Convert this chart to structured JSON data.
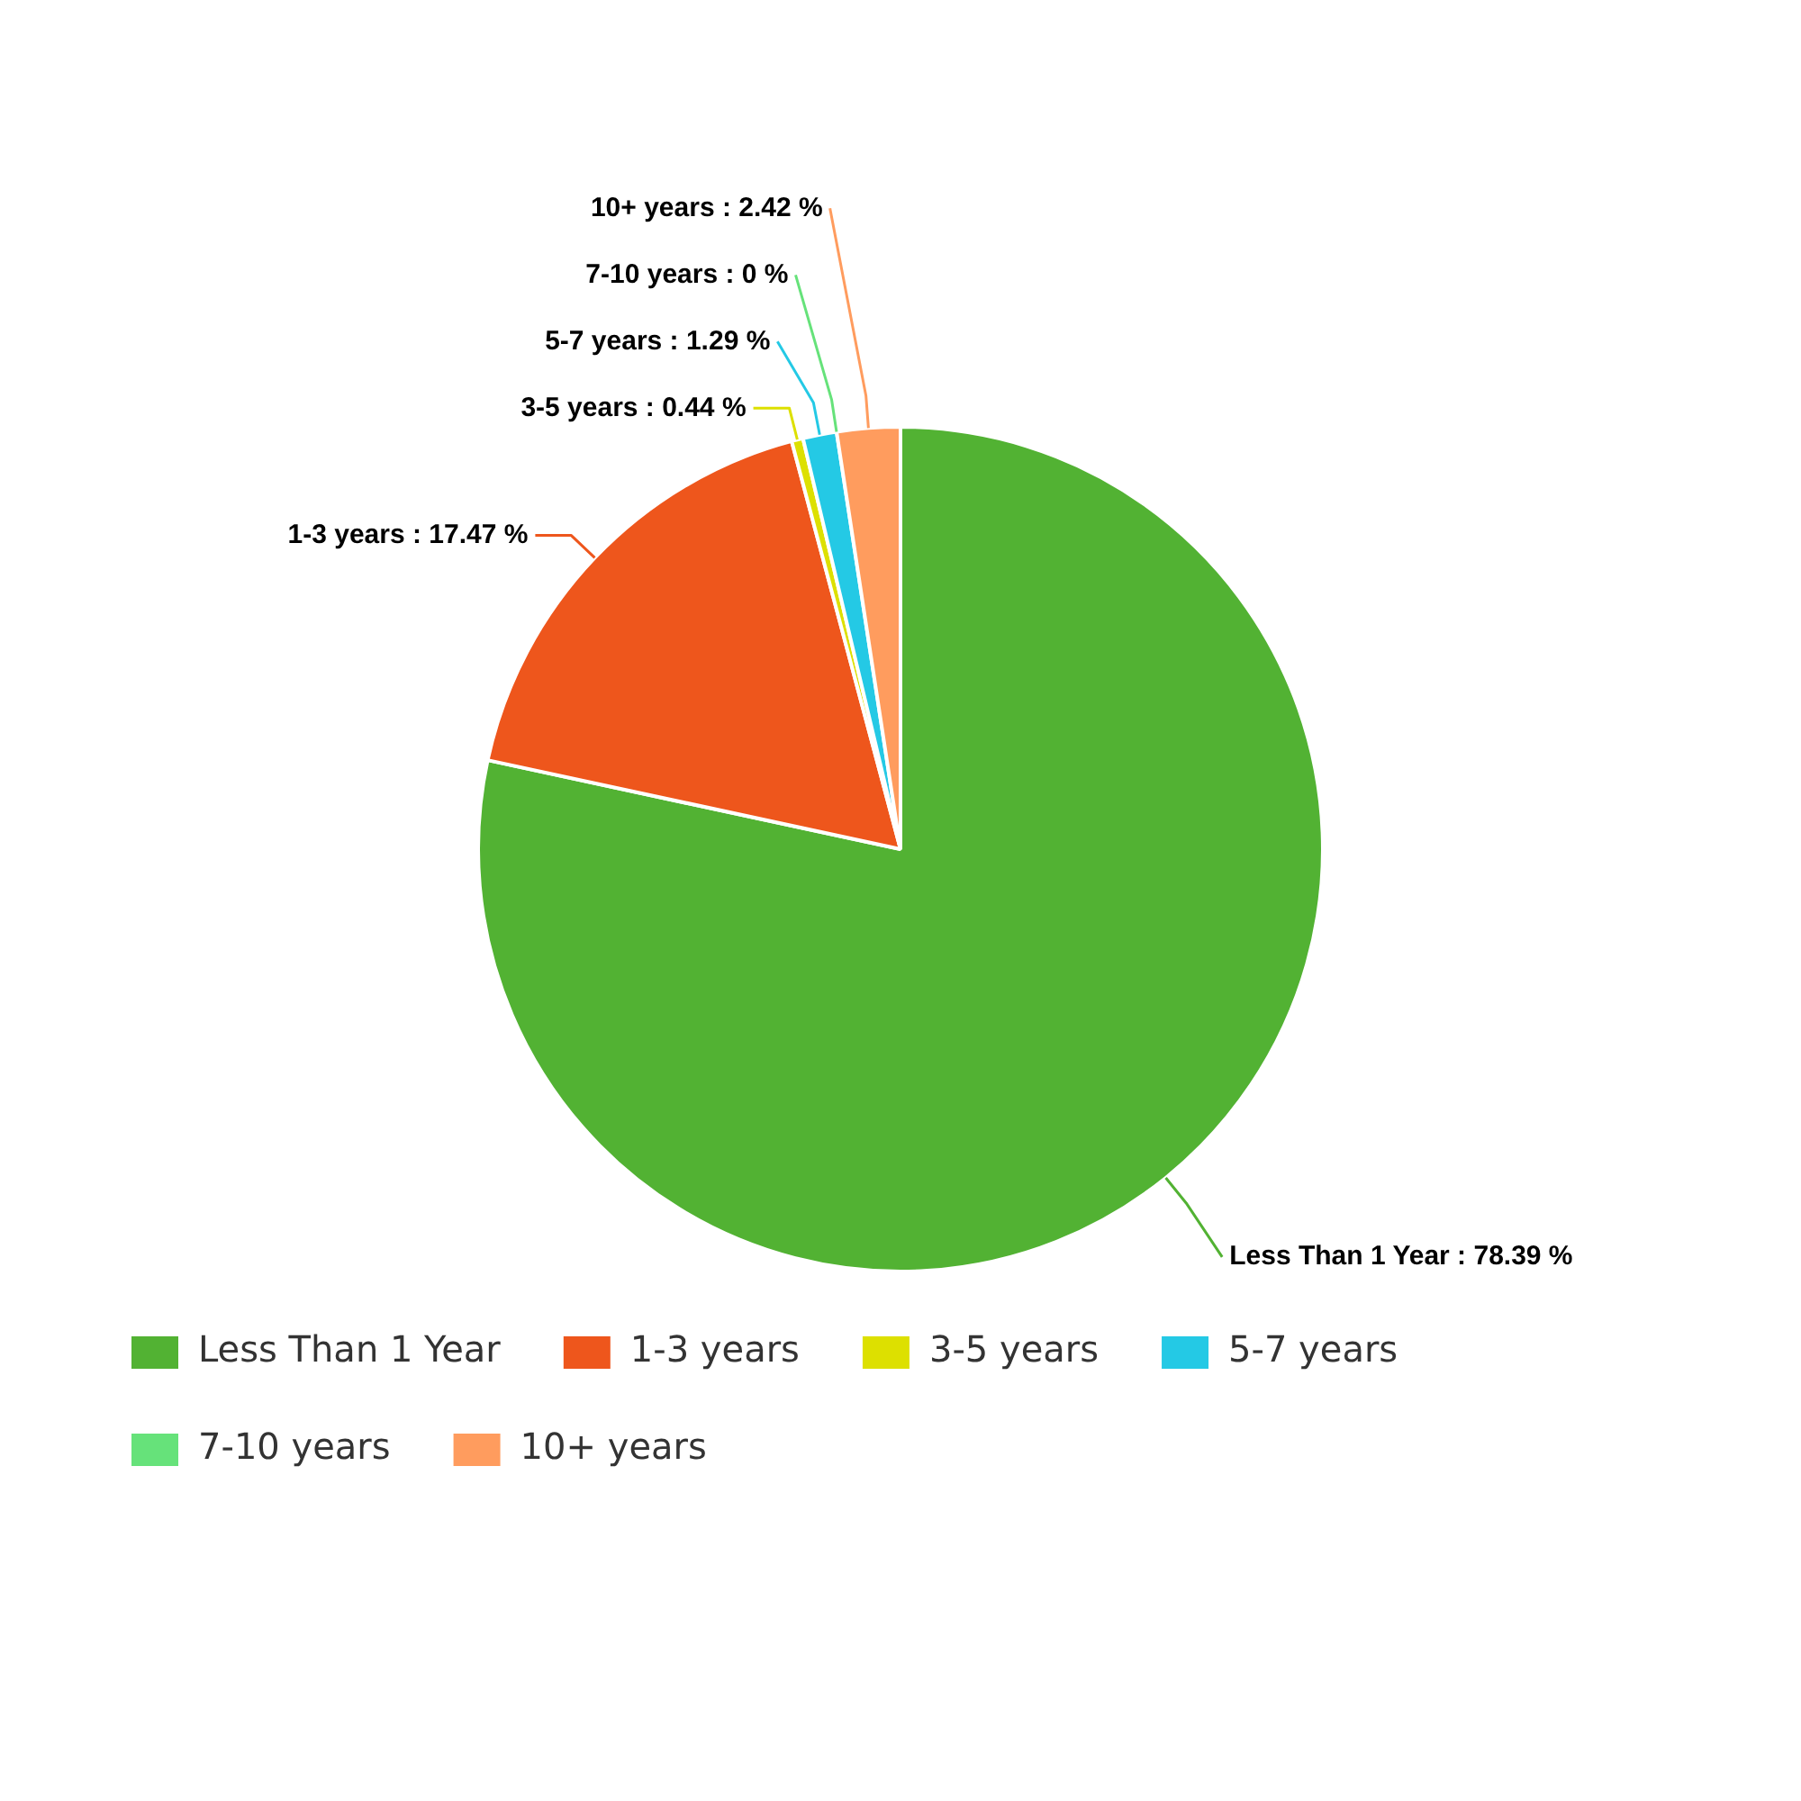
{
  "chart_data": {
    "type": "pie",
    "categories": [
      "Less Than 1 Year",
      "1-3 years",
      "3-5 years",
      "5-7 years",
      "7-10 years",
      "10+ years"
    ],
    "values": [
      78.39,
      17.47,
      0.44,
      1.29,
      0,
      2.42
    ],
    "colors": [
      "#52b233",
      "#ee561c",
      "#dde000",
      "#24c9e5",
      "#66e27a",
      "#ff9c5e"
    ],
    "value_labels": [
      "Less Than 1 Year : 78.39 %",
      "1-3 years : 17.47 %",
      "3-5 years : 0.44 %",
      "5-7 years : 1.29 %",
      "7-10 years : 0 %",
      "10+ years : 2.42 %"
    ],
    "legend": "bottom"
  }
}
